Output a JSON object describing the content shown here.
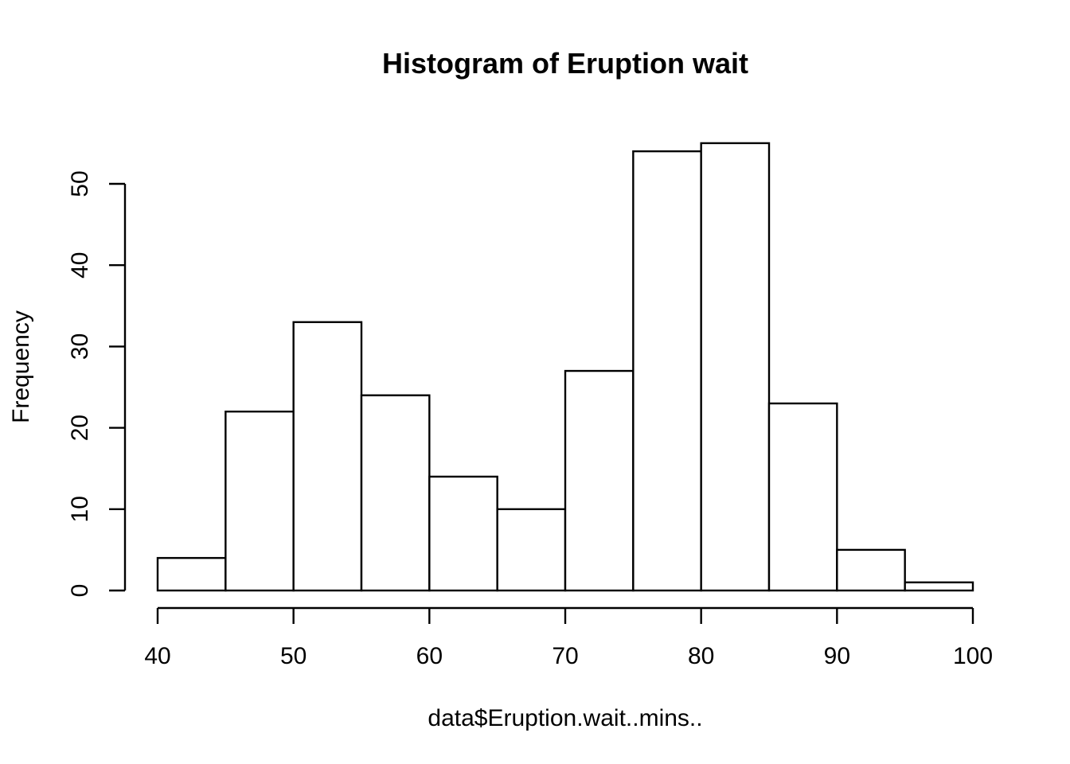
{
  "chart_data": {
    "type": "bar",
    "title": "Histogram of Eruption wait",
    "xlabel": "data$Eruption.wait..mins..",
    "ylabel": "Frequency",
    "bins": [
      {
        "start": 40,
        "end": 45,
        "count": 4
      },
      {
        "start": 45,
        "end": 50,
        "count": 22
      },
      {
        "start": 50,
        "end": 55,
        "count": 33
      },
      {
        "start": 55,
        "end": 60,
        "count": 24
      },
      {
        "start": 60,
        "end": 65,
        "count": 14
      },
      {
        "start": 65,
        "end": 70,
        "count": 10
      },
      {
        "start": 70,
        "end": 75,
        "count": 27
      },
      {
        "start": 75,
        "end": 80,
        "count": 54
      },
      {
        "start": 80,
        "end": 85,
        "count": 55
      },
      {
        "start": 85,
        "end": 90,
        "count": 23
      },
      {
        "start": 90,
        "end": 95,
        "count": 5
      },
      {
        "start": 95,
        "end": 100,
        "count": 1
      }
    ],
    "xlim": [
      40,
      100
    ],
    "ylim": [
      0,
      55
    ],
    "xticks": [
      "40",
      "50",
      "60",
      "70",
      "80",
      "90",
      "100"
    ],
    "yticks": [
      "0",
      "10",
      "20",
      "30",
      "40",
      "50"
    ],
    "grid": false,
    "colors": {
      "bar_fill": "#ffffff",
      "bar_stroke": "#000000"
    }
  }
}
